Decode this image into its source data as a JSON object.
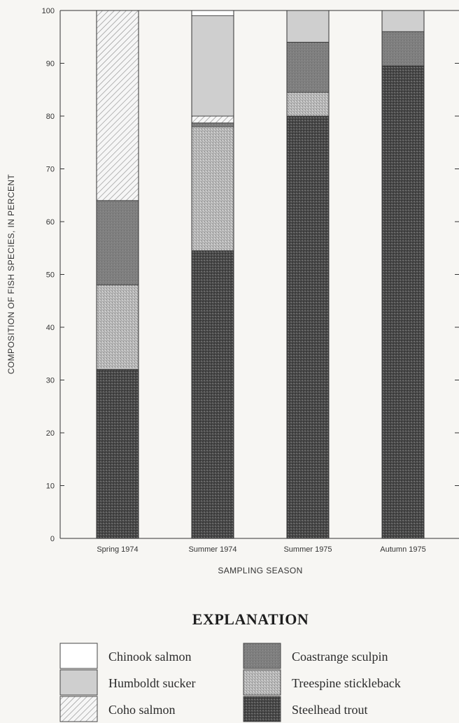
{
  "chart_data": {
    "type": "bar",
    "stacked": true,
    "xlabel": "SAMPLING SEASON",
    "ylabel": "COMPOSITION OF FISH SPECIES, IN PERCENT",
    "ylim": [
      0,
      100
    ],
    "yticks": [
      0,
      10,
      20,
      30,
      40,
      50,
      60,
      70,
      80,
      90,
      100
    ],
    "categories": [
      "Spring 1974",
      "Summer 1974",
      "Summer 1975",
      "Autumn 1975"
    ],
    "series": [
      {
        "name": "Steelhead trout",
        "values": [
          32,
          54.5,
          80,
          89.5
        ],
        "color": "#4a4a4a"
      },
      {
        "name": "Treespine stickleback",
        "values": [
          16,
          23.5,
          4.5,
          0
        ],
        "color": "#b4b4b4"
      },
      {
        "name": "Coastrange sculpin",
        "values": [
          16,
          0.7,
          9.5,
          6.5
        ],
        "color": "#7b7b7b"
      },
      {
        "name": "Coho salmon",
        "values": [
          36,
          1.3,
          0,
          0
        ],
        "color": "#efefef"
      },
      {
        "name": "Humboldt sucker",
        "values": [
          0,
          19,
          6,
          4
        ],
        "color": "#cfcfcf"
      },
      {
        "name": "Chinook salmon",
        "values": [
          0,
          1,
          0,
          0
        ],
        "color": "#ffffff"
      }
    ],
    "grid": false,
    "legend_position": "bottom"
  },
  "explanation": {
    "title": "EXPLANATION",
    "left": [
      {
        "label": "Chinook salmon",
        "color": "#ffffff"
      },
      {
        "label": "Humboldt sucker",
        "color": "#cfcfcf"
      },
      {
        "label": "Coho salmon",
        "color": "#efefef"
      }
    ],
    "right": [
      {
        "label": "Coastrange sculpin",
        "color": "#7b7b7b"
      },
      {
        "label": "Treespine stickleback",
        "color": "#b4b4b4"
      },
      {
        "label": "Steelhead trout",
        "color": "#4a4a4a"
      }
    ]
  }
}
